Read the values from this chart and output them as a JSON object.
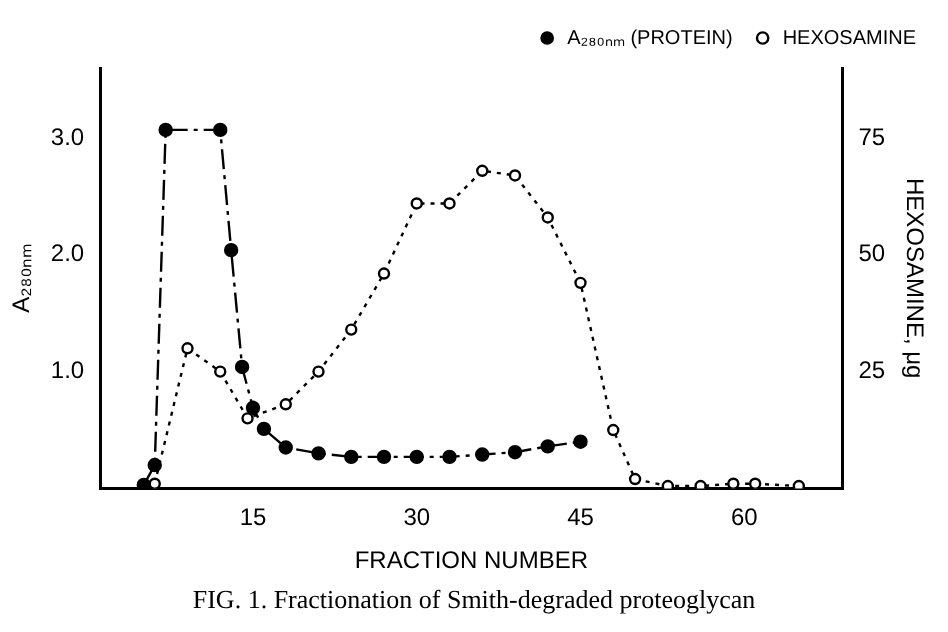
{
  "chart_data": {
    "type": "line",
    "xlabel": "FRACTION NUMBER",
    "ylabel": "A₂₈₀ₙₘ",
    "y2label": "HEXOSAMINE, μg",
    "annotations": [
      "FIG. 1. Fractionation of Smith-degraded proteoglycan"
    ],
    "series": [
      {
        "name": "A₂₈₀ₙₘ (PROTEIN)",
        "color": "#000000",
        "line_style": "dashed",
        "x": [
          5,
          6,
          7,
          12,
          13,
          14,
          15,
          16,
          18,
          21,
          24,
          27,
          30,
          33,
          36,
          39,
          42,
          45
        ],
        "values": [
          0.03,
          0.2,
          3.07,
          3.07,
          2.04,
          1.04,
          0.69,
          0.51,
          0.35,
          0.3,
          0.27,
          0.27,
          0.27,
          0.27,
          0.29,
          0.31,
          0.36,
          0.4
        ]
      },
      {
        "name": "HEXOSAMINE",
        "color": "#000000",
        "line_style": "dotted",
        "axis": "y2",
        "x": [
          6,
          9,
          12,
          14.5,
          18,
          21,
          24,
          27,
          30,
          33,
          36,
          39,
          42,
          45,
          48,
          50,
          53,
          56,
          59,
          61,
          65
        ],
        "values": [
          1,
          30,
          25,
          15,
          18,
          25,
          34,
          46,
          61,
          61,
          68,
          67,
          58,
          44,
          12.5,
          2,
          0.5,
          0.5,
          1,
          1,
          0.5
        ]
      }
    ],
    "marker": "circle",
    "grid": false,
    "legend": "top right",
    "xlim": [
      1,
      69
    ],
    "xticks": [
      15,
      30,
      45,
      60
    ],
    "ylim": [
      0,
      3.6
    ],
    "yticks": [
      {
        "value": 1,
        "label": "1.0"
      },
      {
        "value": 2,
        "label": "2.0"
      },
      {
        "value": 3,
        "label": "3.0"
      }
    ],
    "y2lim": [
      0,
      90
    ],
    "y2ticks": [
      25,
      50,
      75
    ]
  }
}
